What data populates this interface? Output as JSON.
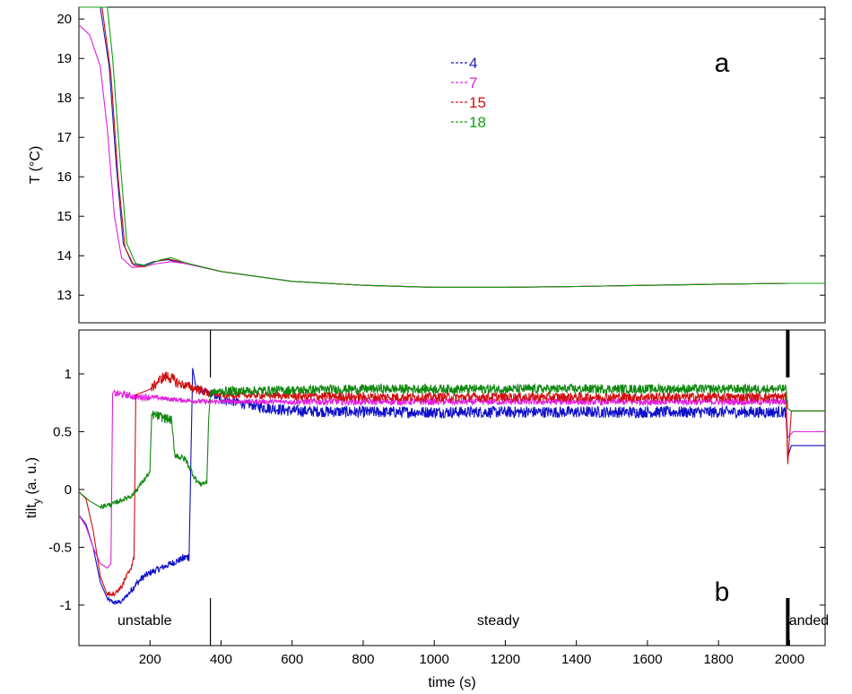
{
  "chart_data": [
    {
      "type": "line",
      "panel_label": "a",
      "ylabel": "T (°C)",
      "xlim": [
        0,
        2100
      ],
      "ylim": [
        12.3,
        20.3
      ],
      "x_ticks": [],
      "y_ticks": [
        13,
        14,
        15,
        16,
        17,
        18,
        19,
        20
      ],
      "legend": {
        "placement": "top-center",
        "entries": [
          "4",
          "7",
          "15",
          "18"
        ]
      },
      "series": [
        {
          "name": "4",
          "color": "#1f1fb4",
          "x": [
            0,
            60,
            85,
            105,
            125,
            150,
            180,
            210,
            250,
            300,
            400,
            600,
            800,
            1000,
            1200,
            1400,
            1600,
            1800,
            2000,
            2100
          ],
          "y": [
            20.3,
            20.3,
            18.8,
            16.3,
            14.3,
            13.8,
            13.75,
            13.85,
            13.9,
            13.8,
            13.6,
            13.35,
            13.25,
            13.2,
            13.2,
            13.22,
            13.25,
            13.28,
            13.3,
            13.3
          ]
        },
        {
          "name": "7",
          "color": "#e020e0",
          "x": [
            0,
            30,
            60,
            80,
            100,
            120,
            150,
            180,
            220,
            260,
            300,
            400,
            600,
            800,
            1000,
            1200,
            1400,
            1600,
            1800,
            2000,
            2100
          ],
          "y": [
            19.85,
            19.6,
            18.8,
            17.2,
            15.0,
            13.95,
            13.7,
            13.72,
            13.8,
            13.85,
            13.8,
            13.6,
            13.35,
            13.25,
            13.2,
            13.2,
            13.22,
            13.25,
            13.28,
            13.3,
            13.3
          ]
        },
        {
          "name": "15",
          "color": "#d01010",
          "x": [
            0,
            65,
            90,
            110,
            130,
            155,
            185,
            215,
            250,
            300,
            400,
            600,
            800,
            1000,
            1200,
            1400,
            1600,
            1800,
            2000,
            2100
          ],
          "y": [
            20.3,
            20.3,
            18.6,
            16.0,
            14.2,
            13.75,
            13.72,
            13.85,
            13.92,
            13.82,
            13.6,
            13.35,
            13.25,
            13.2,
            13.2,
            13.22,
            13.25,
            13.28,
            13.3,
            13.3
          ]
        },
        {
          "name": "18",
          "color": "#10a010",
          "x": [
            0,
            80,
            95,
            115,
            135,
            160,
            190,
            230,
            260,
            300,
            400,
            600,
            800,
            1000,
            1200,
            1400,
            1600,
            1800,
            2000,
            2100
          ],
          "y": [
            20.3,
            20.3,
            19.0,
            16.5,
            14.3,
            13.8,
            13.75,
            13.9,
            13.95,
            13.82,
            13.6,
            13.35,
            13.25,
            13.2,
            13.2,
            13.22,
            13.25,
            13.28,
            13.3,
            13.3
          ]
        }
      ]
    },
    {
      "type": "line",
      "panel_label": "b",
      "xlabel": "time (s)",
      "ylabel_main": "tilt",
      "ylabel_sub": "y",
      "ylabel_suffix": " (a. u.)",
      "xlim": [
        0,
        2100
      ],
      "ylim": [
        -1.35,
        1.38
      ],
      "x_ticks": [
        200,
        400,
        600,
        800,
        1000,
        1200,
        1400,
        1600,
        1800,
        2000
      ],
      "y_ticks": [
        -1,
        -0.5,
        0,
        0.5,
        1
      ],
      "regions": [
        {
          "label": "unstable",
          "x_center": 185
        },
        {
          "label": "steady",
          "x_center": 1180
        },
        {
          "label": "landed",
          "x_center": 2050
        }
      ],
      "region_boundaries": [
        370,
        1995
      ],
      "series": [
        {
          "name": "4",
          "color": "#1010c8",
          "x": [
            0,
            20,
            40,
            60,
            80,
            100,
            120,
            140,
            160,
            180,
            200,
            230,
            260,
            290,
            310,
            320,
            330,
            350,
            370,
            400,
            500,
            600,
            800,
            1000,
            1200,
            1400,
            1600,
            1800,
            1990,
            1995,
            2005,
            2020,
            2100
          ],
          "y": [
            -0.22,
            -0.3,
            -0.5,
            -0.8,
            -0.95,
            -0.98,
            -0.97,
            -0.9,
            -0.82,
            -0.76,
            -0.72,
            -0.68,
            -0.64,
            -0.6,
            -0.58,
            1.05,
            0.88,
            0.85,
            0.83,
            0.78,
            0.72,
            0.68,
            0.67,
            0.67,
            0.67,
            0.67,
            0.67,
            0.67,
            0.67,
            0.28,
            0.38,
            0.38,
            0.38
          ],
          "noise": [
            0,
            0,
            0,
            0,
            0.02,
            0.02,
            0.02,
            0.03,
            0.03,
            0.03,
            0.03,
            0.03,
            0.03,
            0.04,
            0.04,
            0,
            0.03,
            0.03,
            0.03,
            0.04,
            0.05,
            0.05,
            0.05,
            0.05,
            0.05,
            0.05,
            0.05,
            0.05,
            0.05,
            0,
            0,
            0,
            0
          ]
        },
        {
          "name": "7",
          "color": "#e020e0",
          "x": [
            0,
            20,
            40,
            60,
            80,
            90,
            95,
            100,
            130,
            160,
            200,
            260,
            300,
            360,
            400,
            600,
            800,
            1000,
            1200,
            1400,
            1600,
            1800,
            1990,
            1995,
            2010,
            2100
          ],
          "y": [
            -0.22,
            -0.32,
            -0.5,
            -0.64,
            -0.68,
            -0.64,
            0.83,
            0.83,
            0.82,
            0.8,
            0.8,
            0.78,
            0.77,
            0.76,
            0.76,
            0.76,
            0.76,
            0.76,
            0.76,
            0.76,
            0.76,
            0.76,
            0.76,
            0.45,
            0.5,
            0.5
          ],
          "noise": [
            0,
            0,
            0,
            0,
            0,
            0,
            0,
            0.03,
            0.03,
            0.03,
            0.02,
            0.02,
            0.02,
            0.02,
            0.02,
            0.03,
            0.03,
            0.03,
            0.03,
            0.03,
            0.03,
            0.03,
            0.03,
            0,
            0,
            0
          ]
        },
        {
          "name": "15",
          "color": "#d01010",
          "x": [
            0,
            20,
            40,
            60,
            80,
            100,
            120,
            140,
            155,
            160,
            200,
            230,
            250,
            280,
            300,
            340,
            370,
            400,
            600,
            800,
            1000,
            1200,
            1400,
            1600,
            1800,
            1990,
            1995,
            2005,
            2100
          ],
          "y": [
            -0.02,
            -0.08,
            -0.35,
            -0.75,
            -0.9,
            -0.9,
            -0.84,
            -0.72,
            -0.6,
            0.82,
            0.86,
            0.96,
            0.98,
            0.92,
            0.9,
            0.86,
            0.83,
            0.82,
            0.81,
            0.8,
            0.8,
            0.8,
            0.8,
            0.8,
            0.8,
            0.8,
            0.22,
            0.68,
            0.68
          ],
          "noise": [
            0,
            0,
            0,
            0,
            0.02,
            0.02,
            0.03,
            0.03,
            0.03,
            0,
            0.04,
            0.05,
            0.05,
            0.04,
            0.04,
            0.04,
            0.03,
            0.03,
            0.04,
            0.04,
            0.04,
            0.04,
            0.04,
            0.04,
            0.04,
            0.04,
            0,
            0,
            0
          ]
        },
        {
          "name": "18",
          "color": "#108810",
          "x": [
            0,
            30,
            60,
            100,
            150,
            200,
            205,
            240,
            260,
            270,
            300,
            330,
            340,
            360,
            365,
            370,
            400,
            600,
            800,
            1000,
            1200,
            1400,
            1600,
            1800,
            1990,
            1995,
            2005,
            2100
          ],
          "y": [
            -0.02,
            -0.1,
            -0.15,
            -0.12,
            -0.05,
            0.15,
            0.65,
            0.62,
            0.6,
            0.3,
            0.26,
            0.08,
            0.05,
            0.06,
            0.6,
            0.84,
            0.85,
            0.86,
            0.87,
            0.87,
            0.87,
            0.87,
            0.87,
            0.87,
            0.87,
            0.7,
            0.68,
            0.68
          ],
          "noise": [
            0,
            0,
            0.02,
            0.02,
            0.02,
            0.03,
            0.04,
            0.04,
            0.04,
            0.03,
            0.03,
            0.02,
            0.02,
            0.02,
            0,
            0.03,
            0.04,
            0.04,
            0.04,
            0.04,
            0.04,
            0.04,
            0.04,
            0.04,
            0.04,
            0,
            0,
            0
          ]
        }
      ]
    }
  ]
}
